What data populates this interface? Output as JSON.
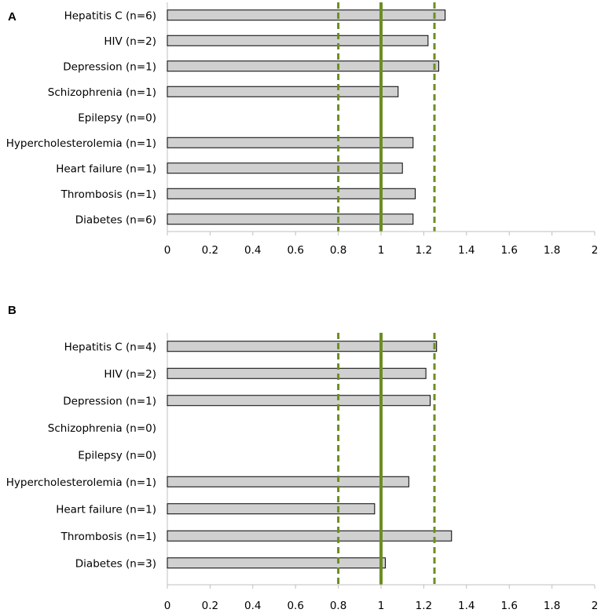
{
  "colors": {
    "bar_fill": "#d0d0d0",
    "bar_stroke": "#000000",
    "axis": "#bfbfbf",
    "reference_line": "#6b8e23"
  },
  "chart_data": [
    {
      "type": "bar",
      "orientation": "horizontal",
      "panel_label": "A",
      "categories": [
        "Hepatitis C (n=6)",
        "HIV (n=2)",
        "Depression (n=1)",
        "Schizophrenia (n=1)",
        "Epilepsy (n=0)",
        "Hypercholesterolemia (n=1)",
        "Heart failure (n=1)",
        "Thrombosis (n=1)",
        "Diabetes (n=6)"
      ],
      "values": [
        1.3,
        1.22,
        1.27,
        1.08,
        null,
        1.15,
        1.1,
        1.16,
        1.15
      ],
      "xlim": [
        0,
        2
      ],
      "xticks": [
        "0",
        "0.2",
        "0.4",
        "0.6",
        "0.8",
        "1",
        "1.2",
        "1.4",
        "1.6",
        "1.8",
        "2"
      ],
      "reference_lines": [
        {
          "value": 0.8,
          "style": "dashed"
        },
        {
          "value": 1.0,
          "style": "solid"
        },
        {
          "value": 1.25,
          "style": "dashed"
        }
      ]
    },
    {
      "type": "bar",
      "orientation": "horizontal",
      "panel_label": "B",
      "categories": [
        "Hepatitis C (n=4)",
        "HIV (n=2)",
        "Depression (n=1)",
        "Schizophrenia (n=0)",
        "Epilepsy (n=0)",
        "Hypercholesterolemia (n=1)",
        "Heart failure (n=1)",
        "Thrombosis (n=1)",
        "Diabetes (n=3)"
      ],
      "values": [
        1.26,
        1.21,
        1.23,
        null,
        null,
        1.13,
        0.97,
        1.33,
        1.02
      ],
      "xlim": [
        0,
        2
      ],
      "xticks": [
        "0",
        "0.2",
        "0.4",
        "0.6",
        "0.8",
        "1",
        "1.2",
        "1.4",
        "1.6",
        "1.8",
        "2"
      ],
      "reference_lines": [
        {
          "value": 0.8,
          "style": "dashed"
        },
        {
          "value": 1.0,
          "style": "solid"
        },
        {
          "value": 1.25,
          "style": "dashed"
        }
      ]
    }
  ]
}
